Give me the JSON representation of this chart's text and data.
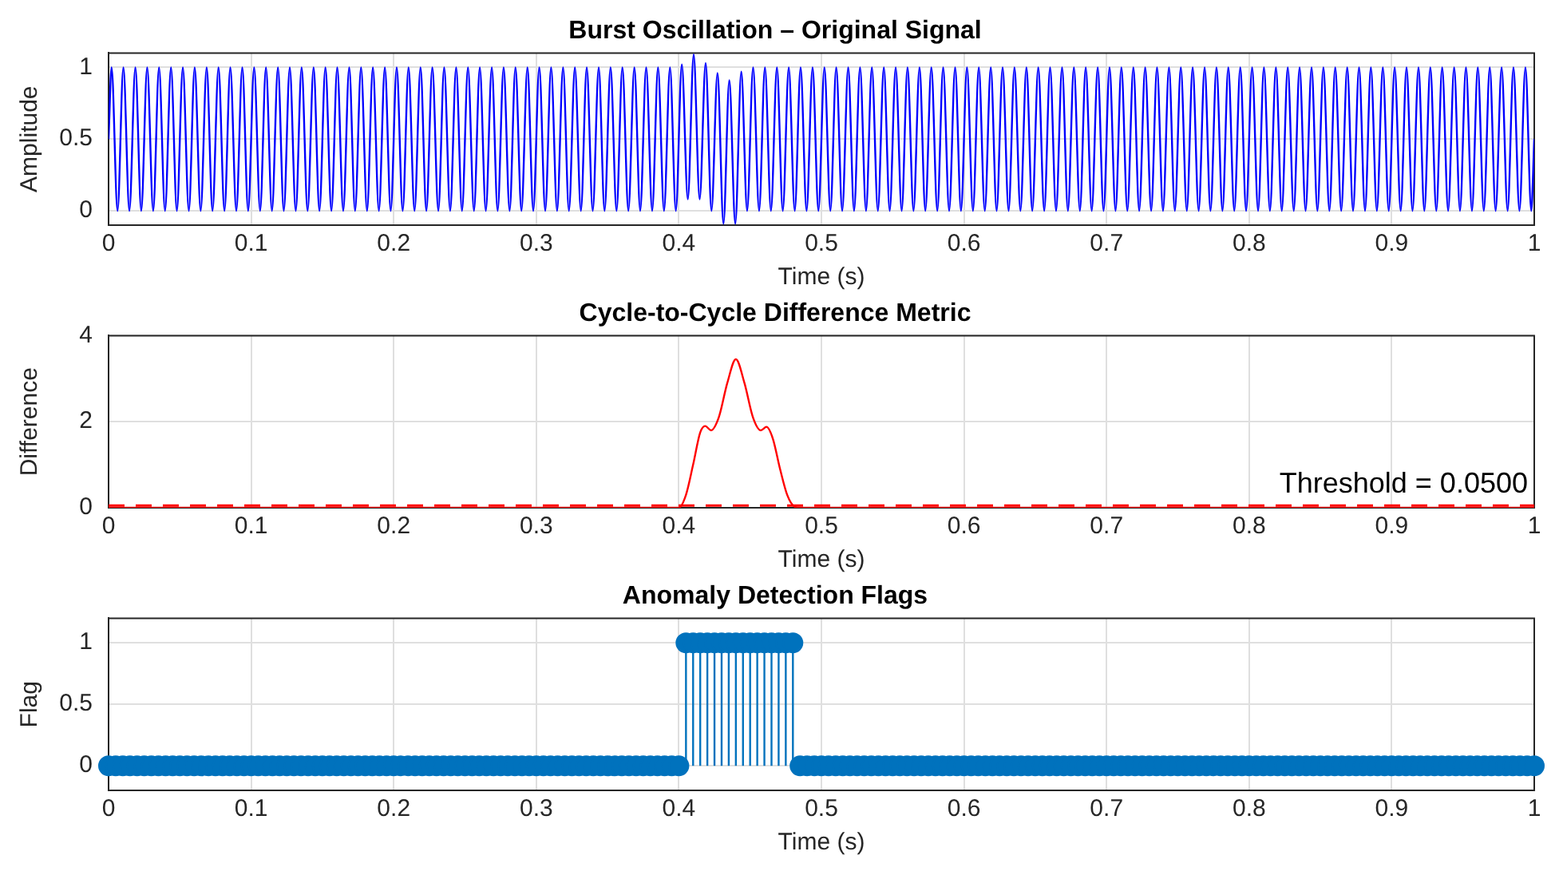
{
  "chart_data": [
    {
      "type": "line",
      "title": "Burst Oscillation – Original Signal",
      "xlabel": "Time (s)",
      "ylabel": "Amplitude",
      "color": "#0000ff",
      "xlim": [
        0,
        1
      ],
      "xticks": [
        0,
        0.1,
        0.2,
        0.3,
        0.4,
        0.5,
        0.6,
        0.7,
        0.8,
        0.9,
        1
      ],
      "ylim": [
        -0.1,
        1.1
      ],
      "yticks": [
        0,
        0.5,
        1
      ],
      "grid": true,
      "x": [
        0,
        0.0021,
        0.0063,
        0.0104,
        0.0146,
        0.0188,
        0.0229,
        0.0271,
        0.0313,
        0.0354,
        0.0396,
        0.0438,
        0.0479,
        0.0521,
        0.0563,
        0.0604,
        0.0646,
        0.0688,
        0.0729,
        0.0771,
        0.0813,
        0.0854,
        0.0896,
        0.0938,
        0.0979,
        0.1021,
        0.1063,
        0.1104,
        0.1146,
        0.1188,
        0.1229,
        0.1271,
        0.1313,
        0.1354,
        0.1396,
        0.1438,
        0.1479,
        0.1521,
        0.1563,
        0.1604,
        0.1646,
        0.1688,
        0.1729,
        0.1771,
        0.1813,
        0.1854,
        0.1896,
        0.1938,
        0.1979,
        0.2021,
        0.2063,
        0.2104,
        0.2146,
        0.2188,
        0.2229,
        0.2271,
        0.2313,
        0.2354,
        0.2396,
        0.2438,
        0.2479,
        0.2521,
        0.2563,
        0.2604,
        0.2646,
        0.2688,
        0.2729,
        0.2771,
        0.2813,
        0.2854,
        0.2896,
        0.2938,
        0.2979,
        0.3021,
        0.3063,
        0.3104,
        0.3146,
        0.3188,
        0.3229,
        0.3271,
        0.3313,
        0.3354,
        0.3396,
        0.3438,
        0.3479,
        0.3521,
        0.3563,
        0.3604,
        0.3646,
        0.3688,
        0.3729,
        0.3771,
        0.3813,
        0.3854,
        0.3896,
        0.3938,
        0.3979,
        0.4021,
        0.4063,
        0.4104,
        0.4146,
        0.4188,
        0.4229,
        0.4271,
        0.4313,
        0.4354,
        0.4396,
        0.4438,
        0.4479,
        0.4521,
        0.4563,
        0.4604,
        0.4646,
        0.4688,
        0.4729,
        0.4771,
        0.4813,
        0.4854,
        0.4896,
        0.4938,
        0.4979,
        0.5021,
        0.5063,
        0.5104,
        0.5146,
        0.5188,
        0.5229,
        0.5271,
        0.5313,
        0.5354,
        0.5396,
        0.5438,
        0.5479,
        0.5521,
        0.5563,
        0.5604,
        0.5646,
        0.5688,
        0.5729,
        0.5771,
        0.5813,
        0.5854,
        0.5896,
        0.5938,
        0.5979,
        0.6021,
        0.6063,
        0.6104,
        0.6146,
        0.6188,
        0.6229,
        0.6271,
        0.6313,
        0.6354,
        0.6396,
        0.6438,
        0.6479,
        0.6521,
        0.6563,
        0.6604,
        0.6646,
        0.6688,
        0.6729,
        0.6771,
        0.6813,
        0.6854,
        0.6896,
        0.6938,
        0.6979,
        0.7021,
        0.7063,
        0.7104,
        0.7146,
        0.7188,
        0.7229,
        0.7271,
        0.7313,
        0.7354,
        0.7396,
        0.7438,
        0.7479,
        0.7521,
        0.7563,
        0.7604,
        0.7646,
        0.7688,
        0.7729,
        0.7771,
        0.7813,
        0.7854,
        0.7896,
        0.7938,
        0.7979,
        0.8021,
        0.8063,
        0.8104,
        0.8146,
        0.8188,
        0.8229,
        0.8271,
        0.8313,
        0.8354,
        0.8396,
        0.8438,
        0.8479,
        0.8521,
        0.8563,
        0.8604,
        0.8646,
        0.8688,
        0.8729,
        0.8771,
        0.8813,
        0.8854,
        0.8896,
        0.8938,
        0.8979,
        0.9021,
        0.9063,
        0.9104,
        0.9146,
        0.9188,
        0.9229,
        0.9271,
        0.9313,
        0.9354,
        0.9396,
        0.9438,
        0.9479,
        0.9521,
        0.9563,
        0.9604,
        0.9646,
        0.9688,
        0.9729,
        0.9771,
        0.9813,
        0.9854,
        0.9896,
        0.9938,
        0.9979,
        1
      ],
      "values": [
        0.5,
        1,
        0,
        1,
        0,
        1,
        0,
        1,
        0,
        1,
        0,
        1,
        0,
        1,
        0,
        1,
        0,
        1,
        0,
        1,
        0,
        1,
        0,
        1,
        0,
        1,
        0,
        1,
        0,
        1,
        0,
        1,
        0,
        1,
        0,
        1,
        0,
        1,
        0,
        1,
        0,
        1,
        0,
        1,
        0,
        1,
        0,
        1,
        0,
        1,
        0,
        1,
        0,
        1,
        0,
        1,
        0,
        1,
        0,
        1,
        0,
        1,
        0,
        1,
        0,
        1,
        0,
        1,
        0,
        1,
        0,
        1,
        0,
        1,
        0,
        1,
        0,
        1,
        0,
        1,
        0,
        1,
        0,
        1,
        0,
        1,
        0,
        1,
        0,
        1,
        0,
        1,
        0,
        1,
        0,
        1,
        0,
        1.02,
        0.08,
        1.09,
        0.08,
        1.03,
        0,
        0.96,
        -0.09,
        0.91,
        -0.09,
        0.97,
        0,
        1,
        0,
        1,
        0,
        1,
        0,
        1,
        0,
        1,
        0,
        1,
        0,
        1,
        0,
        1,
        0,
        1,
        0,
        1,
        0,
        1,
        0,
        1,
        0,
        1,
        0,
        1,
        0,
        1,
        0,
        1,
        0,
        1,
        0,
        1,
        0,
        1,
        0,
        1,
        0,
        1,
        0,
        1,
        0,
        1,
        0,
        1,
        0,
        1,
        0,
        1,
        0,
        1,
        0,
        1,
        0,
        1,
        0,
        1,
        0,
        1,
        0,
        1,
        0,
        1,
        0,
        1,
        0,
        1,
        0,
        1,
        0,
        1,
        0,
        1,
        0,
        1,
        0,
        1,
        0,
        1,
        0,
        1,
        0,
        1,
        0,
        1,
        0,
        1,
        0,
        1,
        0,
        1,
        0,
        1,
        0,
        1,
        0,
        1,
        0,
        1,
        0,
        1,
        0,
        1,
        0,
        1,
        0,
        1,
        0,
        1,
        0,
        1,
        0,
        1,
        0,
        1,
        0,
        1,
        0,
        1,
        0,
        1,
        0,
        1,
        0,
        1,
        0,
        1,
        0,
        1,
        0,
        0.5
      ]
    },
    {
      "type": "line",
      "title": "Cycle-to-Cycle Difference Metric",
      "xlabel": "Time (s)",
      "ylabel": "Difference",
      "color": "#ff0000",
      "xlim": [
        0,
        1
      ],
      "xticks": [
        0,
        0.1,
        0.2,
        0.3,
        0.4,
        0.5,
        0.6,
        0.7,
        0.8,
        0.9,
        1
      ],
      "ylim": [
        0,
        4
      ],
      "yticks": [
        0,
        2,
        4
      ],
      "grid": true,
      "x": [
        0,
        0.4,
        0.405,
        0.41,
        0.415,
        0.4185,
        0.4225,
        0.428,
        0.434,
        0.44,
        0.446,
        0.452,
        0.4575,
        0.4615,
        0.466,
        0.471,
        0.476,
        0.481,
        0.485,
        1
      ],
      "values": [
        0,
        0,
        0.3,
        1,
        1.75,
        1.9,
        1.8,
        2.1,
        2.9,
        3.45,
        2.9,
        2.1,
        1.8,
        1.88,
        1.6,
        0.9,
        0.3,
        0.03,
        0,
        0
      ],
      "ref_lines": [
        {
          "axis": "y",
          "value": 0.05,
          "label": "Threshold = 0.0500",
          "color": "#ff0000",
          "line_style": "dashed"
        }
      ]
    },
    {
      "type": "lollipop",
      "title": "Anomaly Detection Flags",
      "xlabel": "Time (s)",
      "ylabel": "Flag",
      "color": "#0072bd",
      "marker": "circle",
      "xlim": [
        0,
        1
      ],
      "xticks": [
        0,
        0.1,
        0.2,
        0.3,
        0.4,
        0.5,
        0.6,
        0.7,
        0.8,
        0.9,
        1
      ],
      "ylim": [
        -0.2,
        1.2
      ],
      "yticks": [
        0,
        0.5,
        1
      ],
      "grid": true,
      "x": [
        0,
        0.005,
        0.01,
        0.015,
        0.02,
        0.025,
        0.03,
        0.035,
        0.04,
        0.045,
        0.05,
        0.055,
        0.06,
        0.065,
        0.07,
        0.075,
        0.08,
        0.085,
        0.09,
        0.095,
        0.1,
        0.105,
        0.11,
        0.115,
        0.12,
        0.125,
        0.13,
        0.135,
        0.14,
        0.145,
        0.15,
        0.155,
        0.16,
        0.165,
        0.17,
        0.175,
        0.18,
        0.185,
        0.19,
        0.195,
        0.2,
        0.205,
        0.21,
        0.215,
        0.22,
        0.225,
        0.23,
        0.235,
        0.24,
        0.245,
        0.25,
        0.255,
        0.26,
        0.265,
        0.27,
        0.275,
        0.28,
        0.285,
        0.29,
        0.295,
        0.3,
        0.305,
        0.31,
        0.315,
        0.32,
        0.325,
        0.33,
        0.335,
        0.34,
        0.345,
        0.35,
        0.355,
        0.36,
        0.365,
        0.37,
        0.375,
        0.38,
        0.385,
        0.39,
        0.395,
        0.4,
        0.405,
        0.41,
        0.415,
        0.42,
        0.425,
        0.43,
        0.435,
        0.44,
        0.445,
        0.45,
        0.455,
        0.46,
        0.465,
        0.47,
        0.475,
        0.48,
        0.485,
        0.49,
        0.495,
        0.5,
        0.505,
        0.51,
        0.515,
        0.52,
        0.525,
        0.53,
        0.535,
        0.54,
        0.545,
        0.55,
        0.555,
        0.56,
        0.565,
        0.57,
        0.575,
        0.58,
        0.585,
        0.59,
        0.595,
        0.6,
        0.605,
        0.61,
        0.615,
        0.62,
        0.625,
        0.63,
        0.635,
        0.64,
        0.645,
        0.65,
        0.655,
        0.66,
        0.665,
        0.67,
        0.675,
        0.68,
        0.685,
        0.69,
        0.695,
        0.7,
        0.705,
        0.71,
        0.715,
        0.72,
        0.725,
        0.73,
        0.735,
        0.74,
        0.745,
        0.75,
        0.755,
        0.76,
        0.765,
        0.77,
        0.775,
        0.78,
        0.785,
        0.79,
        0.795,
        0.8,
        0.805,
        0.81,
        0.815,
        0.82,
        0.825,
        0.83,
        0.835,
        0.84,
        0.845,
        0.85,
        0.855,
        0.86,
        0.865,
        0.87,
        0.875,
        0.88,
        0.885,
        0.89,
        0.895,
        0.9,
        0.905,
        0.91,
        0.915,
        0.92,
        0.925,
        0.93,
        0.935,
        0.94,
        0.945,
        0.95,
        0.955,
        0.96,
        0.965,
        0.97,
        0.975,
        0.98,
        0.985,
        0.99,
        0.995,
        1
      ],
      "values": [
        0,
        0,
        0,
        0,
        0,
        0,
        0,
        0,
        0,
        0,
        0,
        0,
        0,
        0,
        0,
        0,
        0,
        0,
        0,
        0,
        0,
        0,
        0,
        0,
        0,
        0,
        0,
        0,
        0,
        0,
        0,
        0,
        0,
        0,
        0,
        0,
        0,
        0,
        0,
        0,
        0,
        0,
        0,
        0,
        0,
        0,
        0,
        0,
        0,
        0,
        0,
        0,
        0,
        0,
        0,
        0,
        0,
        0,
        0,
        0,
        0,
        0,
        0,
        0,
        0,
        0,
        0,
        0,
        0,
        0,
        0,
        0,
        0,
        0,
        0,
        0,
        0,
        0,
        0,
        0,
        0,
        1,
        1,
        1,
        1,
        1,
        1,
        1,
        1,
        1,
        1,
        1,
        1,
        1,
        1,
        1,
        1,
        0,
        0,
        0,
        0,
        0,
        0,
        0,
        0,
        0,
        0,
        0,
        0,
        0,
        0,
        0,
        0,
        0,
        0,
        0,
        0,
        0,
        0,
        0,
        0,
        0,
        0,
        0,
        0,
        0,
        0,
        0,
        0,
        0,
        0,
        0,
        0,
        0,
        0,
        0,
        0,
        0,
        0,
        0,
        0,
        0,
        0,
        0,
        0,
        0,
        0,
        0,
        0,
        0,
        0,
        0,
        0,
        0,
        0,
        0,
        0,
        0,
        0,
        0,
        0,
        0,
        0,
        0,
        0,
        0,
        0,
        0,
        0,
        0,
        0,
        0,
        0,
        0,
        0,
        0,
        0,
        0,
        0,
        0,
        0,
        0,
        0,
        0,
        0,
        0,
        0,
        0,
        0,
        0,
        0,
        0,
        0,
        0,
        0,
        0,
        0,
        0,
        0,
        0,
        0
      ]
    }
  ]
}
